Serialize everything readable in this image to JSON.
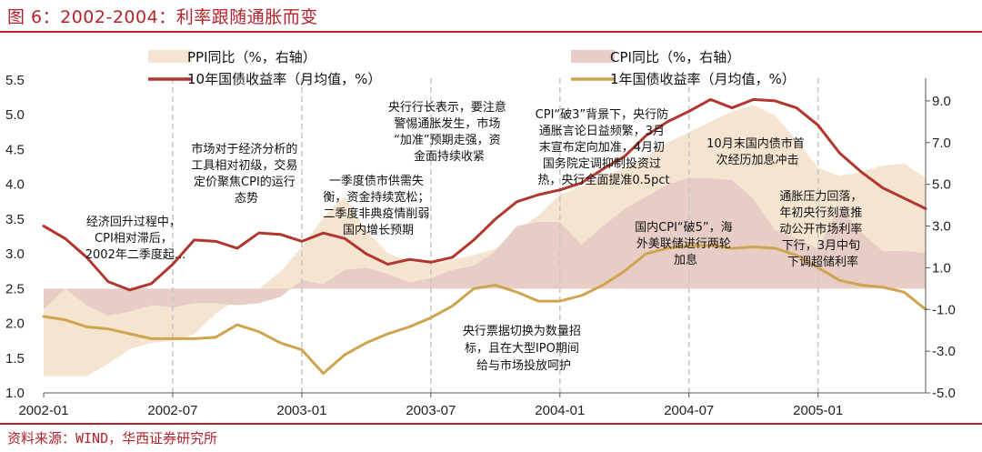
{
  "header": {
    "title": "图 6：2002-2004：利率跟随通胀而变",
    "source": "资料来源：WIND，华西证券研究所"
  },
  "colors": {
    "accent": "#b5222b",
    "yield10": "#b1372e",
    "yield1": "#cfa44f",
    "ppi_fill": "#f4e4d0",
    "cpi_fill": "#e8cdc6",
    "vline": "#c8c8c8"
  },
  "chart_data": {
    "type": "line",
    "title": "2002-2004：利率跟随通胀而变",
    "x_tick_labels": [
      "2002-01",
      "2002-07",
      "2003-01",
      "2003-07",
      "2004-01",
      "2004-07",
      "2005-01"
    ],
    "x_ticks": [
      0,
      6,
      12,
      18,
      24,
      30,
      36
    ],
    "xlim": [
      0,
      41
    ],
    "left_axis": {
      "ylim": [
        1.0,
        5.5
      ],
      "ticks": [
        1.0,
        1.5,
        2.0,
        2.5,
        3.0,
        3.5,
        4.0,
        4.5,
        5.0,
        5.5
      ]
    },
    "right_axis": {
      "ylim": [
        -5.0,
        10.0
      ],
      "ticks": [
        -5.0,
        -3.0,
        -1.0,
        1.0,
        3.0,
        5.0,
        7.0,
        9.0
      ]
    },
    "vlines": [
      6,
      12,
      18,
      24,
      30,
      36
    ],
    "legend": {
      "ppi": "PPI同比（%，右轴）",
      "cpi": "CPI同比（%，右轴）",
      "y10": "10年国债收益率（月均值，%）",
      "y1": "1年国债收益率（月均值，%）"
    },
    "series": [
      {
        "name": "PPI同比（%，右轴）",
        "axis": "right",
        "kind": "area",
        "x": [
          0,
          1,
          2,
          3,
          4,
          5,
          6,
          7,
          8,
          9,
          10,
          11,
          12,
          13,
          14,
          15,
          16,
          17,
          18,
          19,
          20,
          21,
          22,
          23,
          24,
          25,
          26,
          27,
          28,
          29,
          30,
          31,
          32,
          33,
          34,
          35,
          36,
          37,
          38,
          39,
          40,
          41
        ],
        "values": [
          -4.2,
          -4.2,
          -4.2,
          -3.6,
          -2.9,
          -2.6,
          -2.5,
          -2.2,
          -1.2,
          -0.5,
          0.0,
          0.8,
          2.0,
          3.4,
          4.4,
          2.8,
          1.7,
          1.3,
          1.2,
          1.4,
          1.6,
          1.9,
          2.8,
          3.5,
          4.5,
          4.9,
          5.4,
          5.8,
          6.3,
          7.0,
          7.5,
          8.0,
          8.5,
          8.8,
          8.3,
          7.1,
          5.8,
          5.4,
          5.6,
          5.9,
          6.0,
          5.3
        ]
      },
      {
        "name": "CPI同比（%，右轴）",
        "axis": "right",
        "kind": "area",
        "x": [
          0,
          1,
          2,
          3,
          4,
          5,
          6,
          7,
          8,
          9,
          10,
          11,
          12,
          13,
          14,
          15,
          16,
          17,
          18,
          19,
          20,
          21,
          22,
          23,
          24,
          25,
          26,
          27,
          28,
          29,
          30,
          31,
          32,
          33,
          34,
          35,
          36,
          37,
          38,
          39,
          40,
          41
        ],
        "values": [
          -1.0,
          -0.0,
          -0.8,
          -1.3,
          -1.1,
          -0.8,
          -0.9,
          -0.7,
          -0.7,
          -0.8,
          -0.7,
          -0.4,
          0.4,
          0.2,
          0.9,
          1.0,
          0.7,
          0.3,
          0.5,
          0.9,
          1.1,
          1.8,
          3.0,
          3.2,
          3.2,
          2.1,
          3.0,
          3.8,
          4.4,
          5.0,
          5.3,
          5.3,
          5.2,
          4.3,
          2.8,
          2.4,
          1.9,
          3.9,
          2.7,
          1.8,
          1.8,
          1.7
        ]
      },
      {
        "name": "10年国债收益率（月均值，%）",
        "axis": "left",
        "kind": "line",
        "x": [
          0,
          1,
          2,
          3,
          4,
          5,
          6,
          7,
          8,
          9,
          10,
          11,
          12,
          13,
          14,
          15,
          16,
          17,
          18,
          19,
          20,
          21,
          22,
          23,
          24,
          25,
          26,
          27,
          28,
          29,
          30,
          31,
          32,
          33,
          34,
          35,
          36,
          37,
          38,
          39,
          40,
          41
        ],
        "values": [
          3.4,
          3.22,
          2.95,
          2.6,
          2.48,
          2.57,
          2.85,
          3.2,
          3.18,
          3.08,
          3.3,
          3.28,
          3.18,
          3.3,
          3.22,
          3.0,
          2.85,
          2.92,
          2.88,
          2.95,
          3.2,
          3.5,
          3.75,
          3.85,
          3.92,
          4.02,
          4.22,
          4.4,
          4.7,
          4.9,
          5.05,
          5.22,
          5.1,
          5.22,
          5.2,
          5.1,
          4.85,
          4.45,
          4.18,
          3.95,
          3.8,
          3.65
        ]
      },
      {
        "name": "1年国债收益率（月均值，%）",
        "axis": "left",
        "kind": "line",
        "x": [
          0,
          1,
          2,
          3,
          4,
          5,
          6,
          7,
          8,
          9,
          10,
          11,
          12,
          13,
          14,
          15,
          16,
          17,
          18,
          19,
          20,
          21,
          22,
          23,
          24,
          25,
          26,
          27,
          28,
          29,
          30,
          31,
          32,
          33,
          34,
          35,
          36,
          37,
          38,
          39,
          40,
          41
        ],
        "values": [
          2.1,
          2.05,
          1.95,
          1.92,
          1.85,
          1.78,
          1.78,
          1.78,
          1.8,
          1.98,
          1.88,
          1.72,
          1.62,
          1.28,
          1.55,
          1.72,
          1.85,
          1.95,
          2.08,
          2.25,
          2.5,
          2.55,
          2.45,
          2.32,
          2.32,
          2.4,
          2.55,
          2.75,
          3.0,
          3.08,
          3.12,
          3.12,
          3.08,
          3.1,
          3.08,
          2.98,
          2.8,
          2.62,
          2.55,
          2.52,
          2.45,
          2.2
        ]
      }
    ],
    "annotations": {
      "a1": [
        "经济回升过程中，",
        "CPI相对滞后，",
        "2002年二季度起..."
      ],
      "a2": [
        "市场对于经济分析的",
        "工具相对初级，交易",
        "定价聚焦CPI的运行",
        "态势"
      ],
      "a3": [
        "一季度债市供需失",
        "衡，资金持续宽松；",
        "二季度非典疫情削弱",
        "国内增长预期"
      ],
      "a4": [
        "央行行长表示，要注意",
        "警惕通胀发生，市场",
        "“加准”预期走强，资",
        "金面持续收紧"
      ],
      "a5": [
        "CPI“破3”背景下，央行防",
        "通胀言论日益频繁，3月",
        "末宣布定向加准，4月初",
        "国务院定调抑制投资过",
        "热，央行全面提准0.5pct"
      ],
      "a6": [
        "10月末国内债市首",
        "次经历加息冲击"
      ],
      "a7": [
        "国内CPI“破5”，海",
        "外美联储进行两轮",
        "加息"
      ],
      "a8": [
        "通胀压力回落，",
        "年初央行刻意推",
        "动公开市场利率",
        "下行，3月中旬",
        "下调超储利率"
      ],
      "a9": [
        "央行票据切换为数量招",
        "标，且在大型IPO期间",
        "给与市场投放呵护"
      ]
    }
  }
}
